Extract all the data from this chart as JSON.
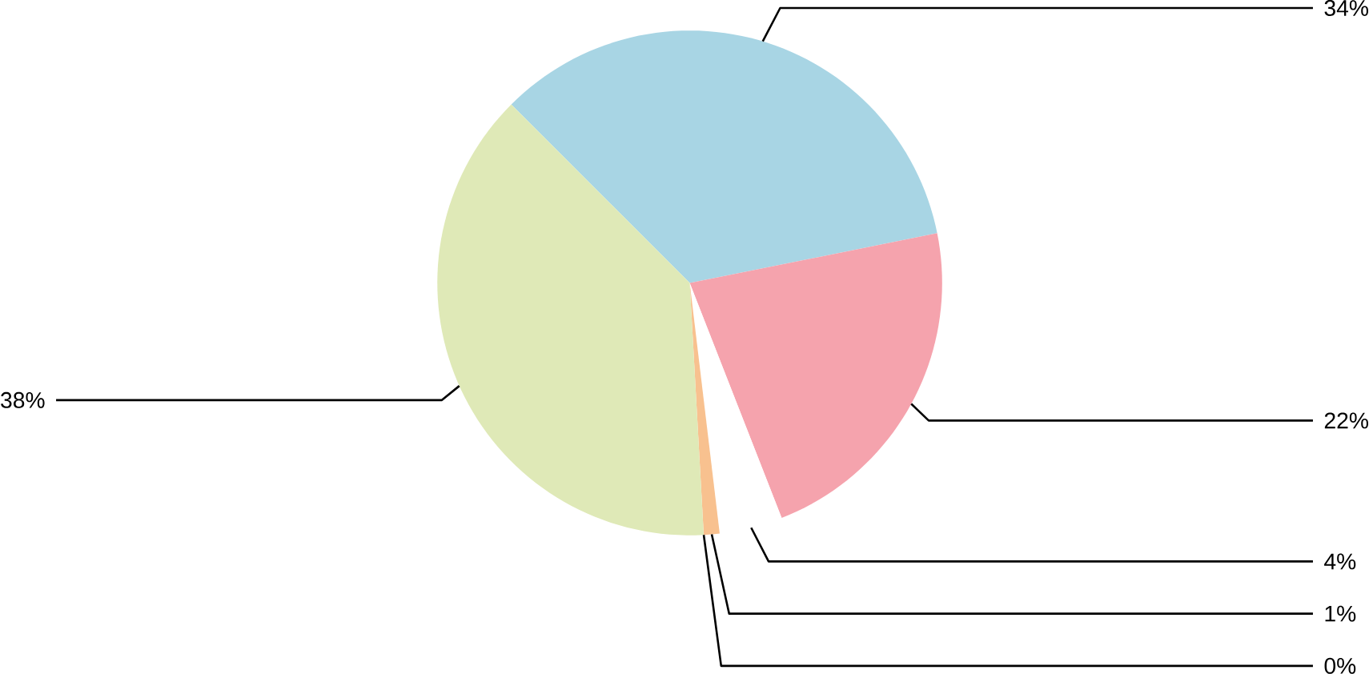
{
  "chart_data": {
    "type": "pie",
    "categories": [
      null,
      null,
      null,
      null,
      null,
      null
    ],
    "values": [
      34,
      22,
      4,
      1,
      0,
      38
    ],
    "value_labels": [
      "34%",
      "22%",
      "4%",
      "1%",
      "0%",
      "38%"
    ],
    "colors": [
      "#a8d5e4",
      "#f5a3ad",
      "#ffffff",
      "#f8c18f",
      "#b9bde3",
      "#dfe9b7"
    ]
  }
}
